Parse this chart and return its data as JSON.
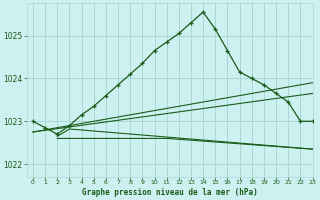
{
  "title": "Graphe pression niveau de la mer (hPa)",
  "background_color": "#cdf0f0",
  "grid_color": "#a8d8d8",
  "line_color": "#1a5c1a",
  "xlim": [
    -0.5,
    23
  ],
  "ylim": [
    1021.7,
    1025.75
  ],
  "yticks": [
    1022,
    1023,
    1024,
    1025
  ],
  "xticks": [
    0,
    1,
    2,
    3,
    4,
    5,
    6,
    7,
    8,
    9,
    10,
    11,
    12,
    13,
    14,
    15,
    16,
    17,
    18,
    19,
    20,
    21,
    22,
    23
  ],
  "series1_x": [
    0,
    1,
    2,
    3,
    4,
    5,
    6,
    7,
    8,
    9,
    10,
    11,
    12,
    13,
    14,
    15,
    16,
    17,
    18,
    19,
    20,
    21,
    22,
    23
  ],
  "series1_y": [
    1023.0,
    1022.85,
    1022.7,
    1022.9,
    1023.15,
    1023.35,
    1023.6,
    1023.85,
    1024.1,
    1024.35,
    1024.65,
    1024.85,
    1025.05,
    1025.3,
    1025.55,
    1025.15,
    1024.65,
    1024.15,
    1024.0,
    1023.85,
    1023.65,
    1023.45,
    1023.0,
    1023.0
  ],
  "series2_x": [
    0,
    23
  ],
  "series2_y": [
    1022.75,
    1023.9
  ],
  "series3_x": [
    0,
    23
  ],
  "series3_y": [
    1022.75,
    1023.65
  ],
  "series4_x": [
    2,
    11,
    23
  ],
  "series4_y": [
    1022.6,
    1022.6,
    1022.35
  ],
  "series5_x": [
    2,
    3,
    23
  ],
  "series5_y": [
    1022.65,
    1022.82,
    1022.35
  ]
}
